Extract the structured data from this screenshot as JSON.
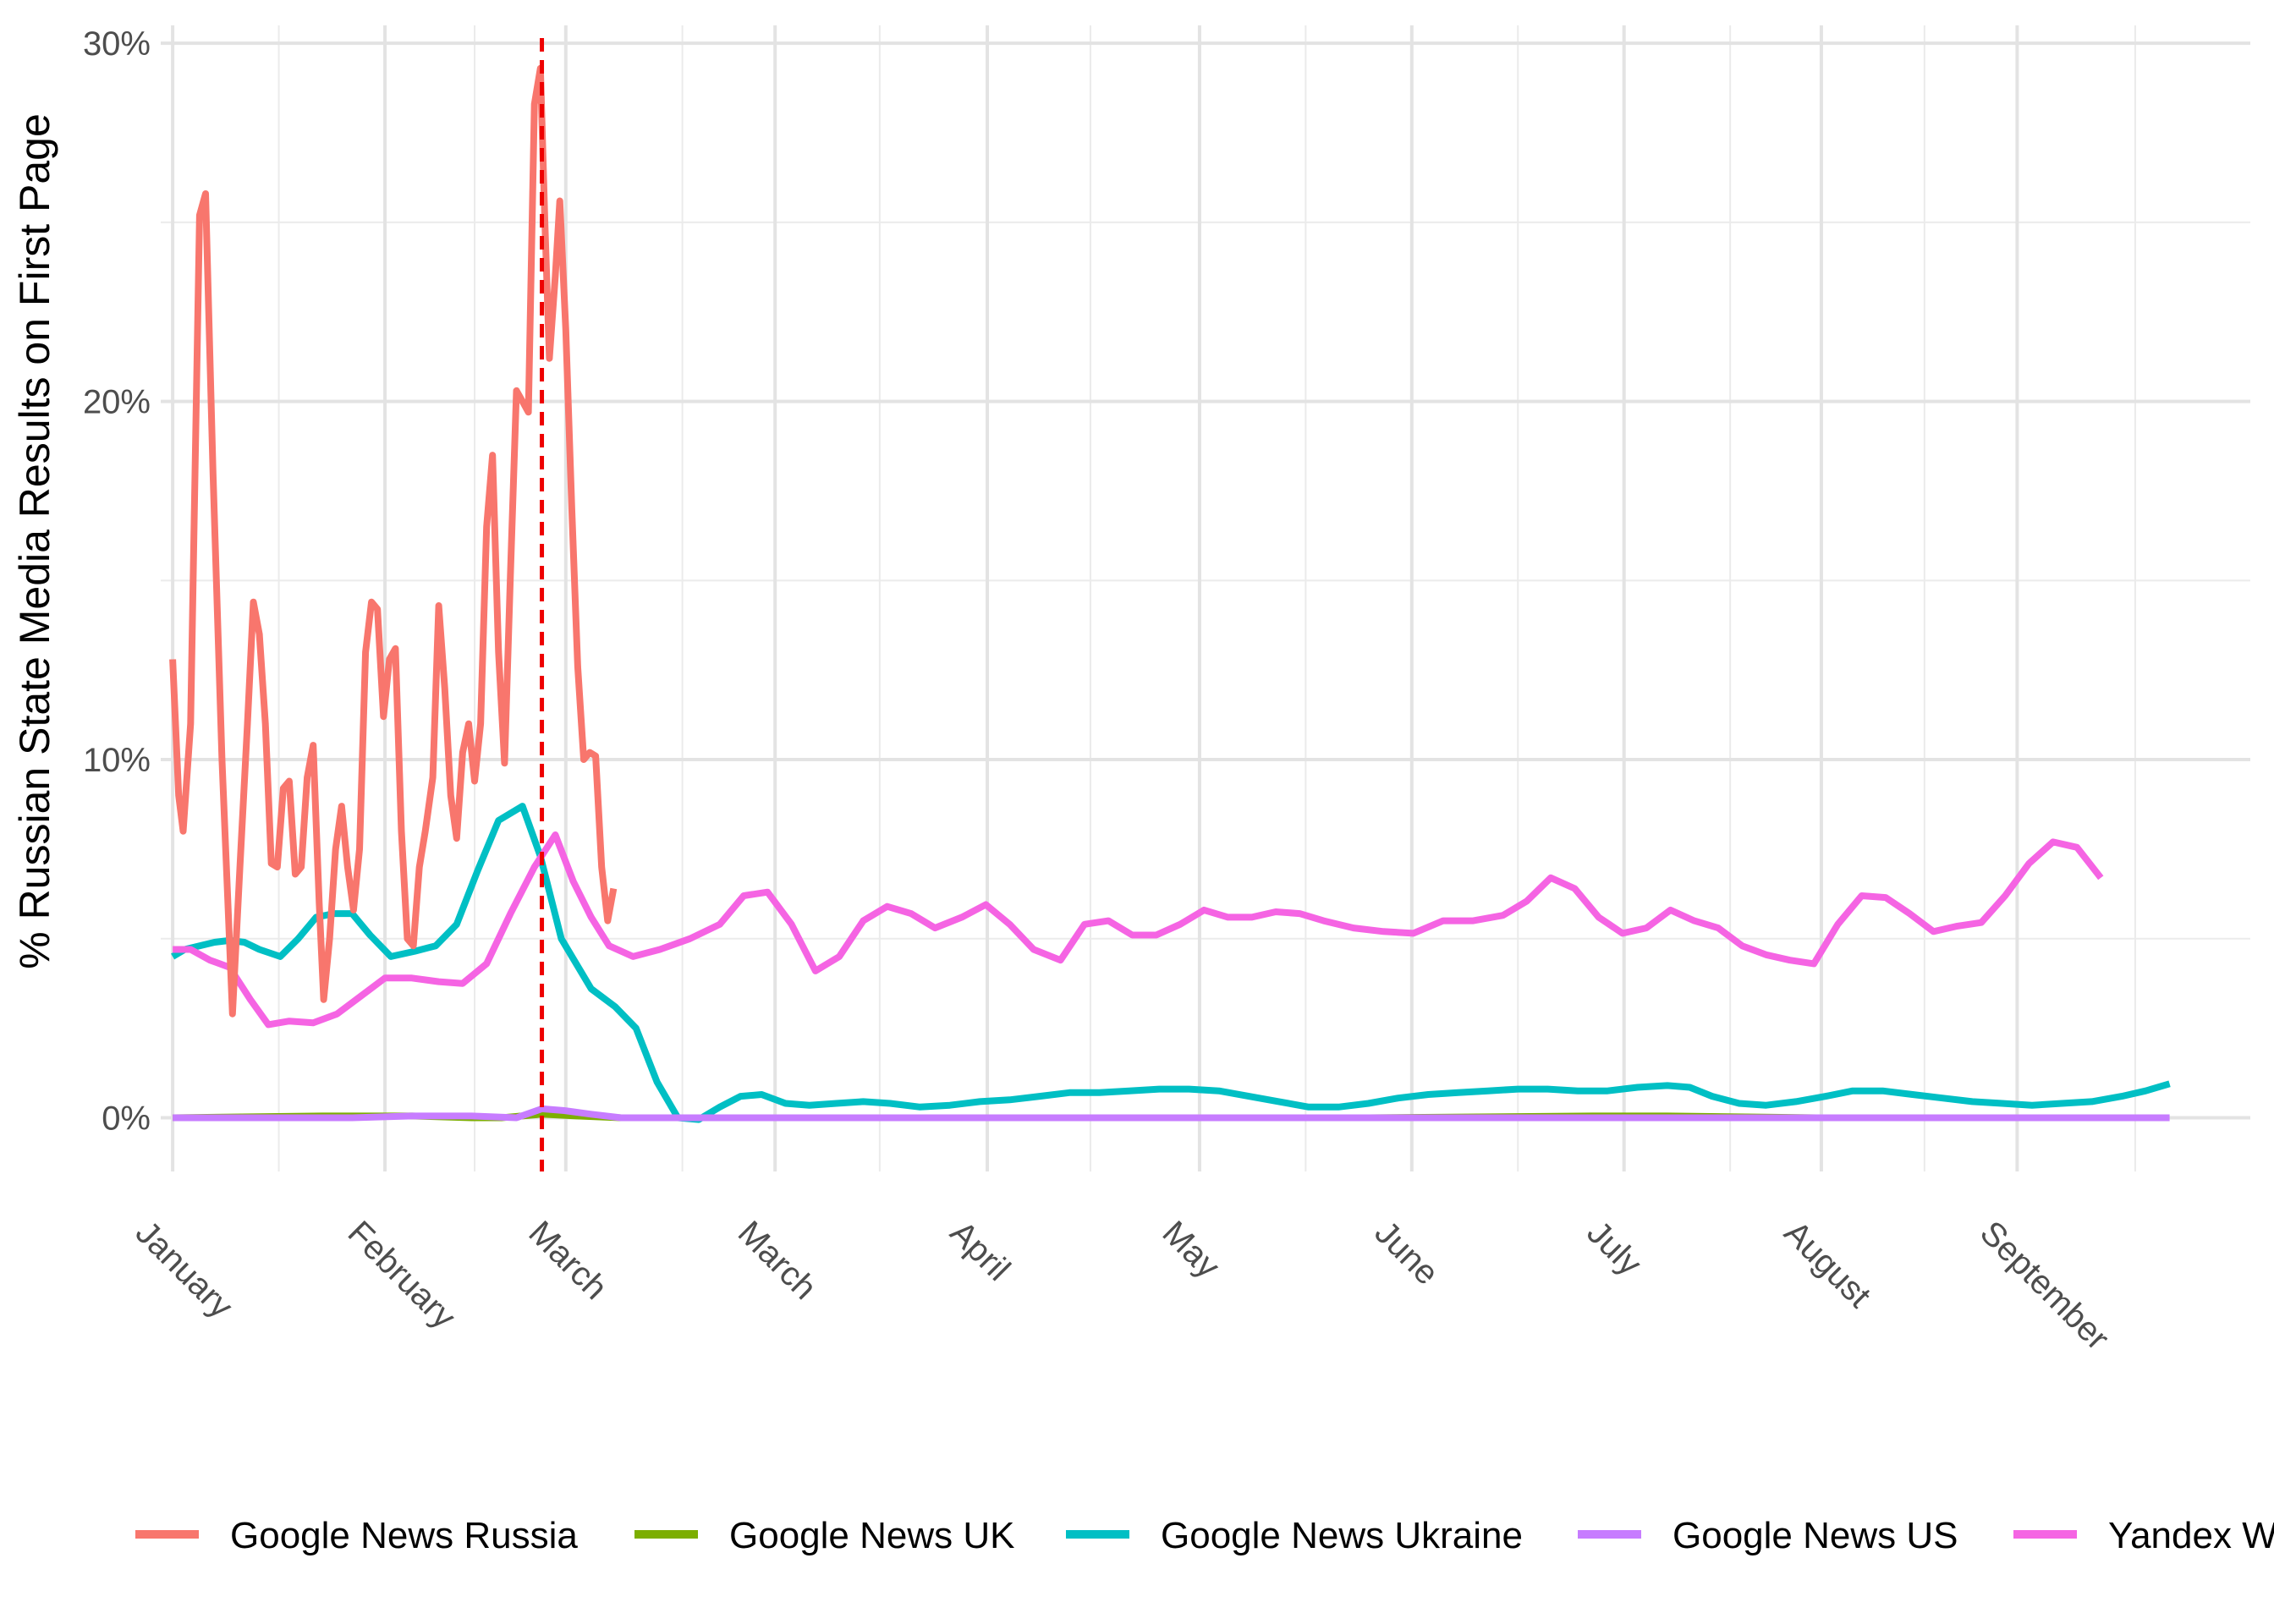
{
  "chart_data": {
    "type": "line",
    "title": "",
    "xlabel": "",
    "ylabel": "% Russian State Media Results on First Page",
    "ylim": [
      -1.5,
      30.5
    ],
    "yticks": [
      0,
      10,
      20,
      30
    ],
    "ytick_labels": [
      "0%",
      "10%",
      "20%",
      "30%"
    ],
    "xlim": [
      -8,
      1390
    ],
    "xticks": [
      {
        "label": "January",
        "day": 0
      },
      {
        "label": "February",
        "day": 142
      },
      {
        "label": "March",
        "day": 263
      },
      {
        "label": "March",
        "day": 403
      },
      {
        "label": "April",
        "day": 545
      },
      {
        "label": "May",
        "day": 687
      },
      {
        "label": "June",
        "day": 829
      },
      {
        "label": "July",
        "day": 971
      },
      {
        "label": "August",
        "day": 1103
      },
      {
        "label": "September",
        "day": 1234
      }
    ],
    "xminor": [
      71,
      202,
      341,
      473,
      614,
      758,
      900,
      1042,
      1172,
      1313
    ],
    "vline": {
      "day": 247,
      "color": "#e41a1c",
      "style": "dashed"
    },
    "legend_position": "bottom",
    "grid": true,
    "series": [
      {
        "name": "Google News Russia",
        "color": "#F8766D",
        "points": [
          [
            0,
            12.8
          ],
          [
            4,
            9.0
          ],
          [
            7,
            8.0
          ],
          [
            12,
            11.0
          ],
          [
            18,
            25.2
          ],
          [
            22,
            25.8
          ],
          [
            27,
            18.0
          ],
          [
            33,
            10.0
          ],
          [
            40,
            2.9
          ],
          [
            45,
            7.0
          ],
          [
            50,
            11.0
          ],
          [
            54,
            14.4
          ],
          [
            58,
            13.5
          ],
          [
            62,
            11.0
          ],
          [
            66,
            7.1
          ],
          [
            70,
            7.0
          ],
          [
            74,
            9.2
          ],
          [
            78,
            9.4
          ],
          [
            82,
            6.8
          ],
          [
            86,
            7.0
          ],
          [
            90,
            9.5
          ],
          [
            94,
            10.4
          ],
          [
            98,
            6.0
          ],
          [
            101,
            3.3
          ],
          [
            105,
            5.0
          ],
          [
            109,
            7.5
          ],
          [
            113,
            8.7
          ],
          [
            117,
            7.0
          ],
          [
            121,
            5.8
          ],
          [
            125,
            7.5
          ],
          [
            129,
            13.0
          ],
          [
            133,
            14.4
          ],
          [
            137,
            14.2
          ],
          [
            141,
            11.2
          ],
          [
            145,
            12.8
          ],
          [
            149,
            13.1
          ],
          [
            153,
            8.0
          ],
          [
            157,
            5.0
          ],
          [
            161,
            4.8
          ],
          [
            165,
            7.0
          ],
          [
            169,
            8.0
          ],
          [
            174,
            9.5
          ],
          [
            178,
            14.3
          ],
          [
            182,
            12.0
          ],
          [
            186,
            9.0
          ],
          [
            190,
            7.8
          ],
          [
            194,
            10.2
          ],
          [
            198,
            11.0
          ],
          [
            202,
            9.4
          ],
          [
            206,
            11.0
          ],
          [
            210,
            16.5
          ],
          [
            214,
            18.5
          ],
          [
            218,
            13.0
          ],
          [
            222,
            9.9
          ],
          [
            226,
            15.2
          ],
          [
            230,
            20.3
          ],
          [
            234,
            20.0
          ],
          [
            238,
            19.7
          ],
          [
            242,
            28.3
          ],
          [
            246,
            29.3
          ],
          [
            249,
            25.0
          ],
          [
            252,
            21.2
          ],
          [
            256,
            23.5
          ],
          [
            259,
            25.6
          ],
          [
            263,
            22.0
          ],
          [
            267,
            17.0
          ],
          [
            271,
            12.6
          ],
          [
            275,
            10.0
          ],
          [
            279,
            10.2
          ],
          [
            283,
            10.1
          ],
          [
            287,
            7.0
          ],
          [
            291,
            5.5
          ],
          [
            295,
            6.4
          ]
        ]
      },
      {
        "name": "Google News UK",
        "color": "#7CAE00",
        "points": [
          [
            0,
            0
          ],
          [
            100,
            0.05
          ],
          [
            160,
            0.05
          ],
          [
            200,
            0
          ],
          [
            220,
            0
          ],
          [
            247,
            0.1
          ],
          [
            270,
            0.05
          ],
          [
            300,
            0
          ],
          [
            500,
            0
          ],
          [
            800,
            0
          ],
          [
            950,
            0.05
          ],
          [
            1000,
            0.05
          ],
          [
            1100,
            0
          ],
          [
            1160,
            0
          ]
        ]
      },
      {
        "name": "Google News Ukraine",
        "color": "#00BFC4",
        "points": [
          [
            0,
            4.5
          ],
          [
            8,
            4.7
          ],
          [
            18,
            4.8
          ],
          [
            28,
            4.9
          ],
          [
            38,
            4.95
          ],
          [
            48,
            4.9
          ],
          [
            58,
            4.7
          ],
          [
            72,
            4.5
          ],
          [
            84,
            5.0
          ],
          [
            96,
            5.6
          ],
          [
            108,
            5.7
          ],
          [
            120,
            5.7
          ],
          [
            132,
            5.1
          ],
          [
            146,
            4.5
          ],
          [
            162,
            4.65
          ],
          [
            176,
            4.8
          ],
          [
            190,
            5.4
          ],
          [
            204,
            6.9
          ],
          [
            218,
            8.3
          ],
          [
            234,
            8.7
          ],
          [
            246,
            7.3
          ],
          [
            260,
            5.0
          ],
          [
            280,
            3.6
          ],
          [
            296,
            3.1
          ],
          [
            310,
            2.5
          ],
          [
            324,
            1.0
          ],
          [
            338,
            0
          ],
          [
            352,
            -0.05
          ],
          [
            366,
            0.3
          ],
          [
            380,
            0.6
          ],
          [
            394,
            0.65
          ],
          [
            410,
            0.4
          ],
          [
            426,
            0.35
          ],
          [
            444,
            0.4
          ],
          [
            462,
            0.45
          ],
          [
            480,
            0.4
          ],
          [
            500,
            0.3
          ],
          [
            520,
            0.35
          ],
          [
            540,
            0.45
          ],
          [
            560,
            0.5
          ],
          [
            580,
            0.6
          ],
          [
            600,
            0.7
          ],
          [
            620,
            0.7
          ],
          [
            640,
            0.75
          ],
          [
            660,
            0.8
          ],
          [
            680,
            0.8
          ],
          [
            700,
            0.75
          ],
          [
            720,
            0.6
          ],
          [
            740,
            0.45
          ],
          [
            760,
            0.3
          ],
          [
            780,
            0.3
          ],
          [
            800,
            0.4
          ],
          [
            820,
            0.55
          ],
          [
            840,
            0.65
          ],
          [
            860,
            0.7
          ],
          [
            880,
            0.75
          ],
          [
            900,
            0.8
          ],
          [
            920,
            0.8
          ],
          [
            940,
            0.75
          ],
          [
            960,
            0.75
          ],
          [
            980,
            0.85
          ],
          [
            1000,
            0.9
          ],
          [
            1015,
            0.85
          ],
          [
            1030,
            0.6
          ],
          [
            1048,
            0.4
          ],
          [
            1066,
            0.35
          ],
          [
            1086,
            0.45
          ],
          [
            1106,
            0.6
          ],
          [
            1124,
            0.75
          ],
          [
            1144,
            0.75
          ],
          [
            1164,
            0.65
          ],
          [
            1184,
            0.55
          ],
          [
            1204,
            0.45
          ],
          [
            1224,
            0.4
          ],
          [
            1244,
            0.35
          ],
          [
            1264,
            0.4
          ],
          [
            1284,
            0.45
          ],
          [
            1304,
            0.6
          ],
          [
            1320,
            0.75
          ],
          [
            1336,
            0.95
          ]
        ]
      },
      {
        "name": "Google News US",
        "color": "#C77CFF",
        "points": [
          [
            0,
            0
          ],
          [
            80,
            0
          ],
          [
            120,
            0
          ],
          [
            160,
            0.05
          ],
          [
            200,
            0.05
          ],
          [
            230,
            0
          ],
          [
            247,
            0.25
          ],
          [
            262,
            0.2
          ],
          [
            280,
            0.1
          ],
          [
            300,
            0
          ],
          [
            340,
            0
          ],
          [
            500,
            0
          ],
          [
            800,
            0
          ],
          [
            1100,
            0
          ],
          [
            1336,
            0
          ]
        ]
      },
      {
        "name": "Yandex World",
        "color": "#F564E3",
        "points": [
          [
            0,
            4.7
          ],
          [
            12,
            4.7
          ],
          [
            25,
            4.4
          ],
          [
            38,
            4.2
          ],
          [
            52,
            3.3
          ],
          [
            64,
            2.6
          ],
          [
            78,
            2.7
          ],
          [
            94,
            2.65
          ],
          [
            110,
            2.9
          ],
          [
            126,
            3.4
          ],
          [
            142,
            3.9
          ],
          [
            160,
            3.9
          ],
          [
            178,
            3.8
          ],
          [
            194,
            3.75
          ],
          [
            210,
            4.3
          ],
          [
            226,
            5.7
          ],
          [
            242,
            7.0
          ],
          [
            256,
            7.9
          ],
          [
            268,
            6.6
          ],
          [
            280,
            5.6
          ],
          [
            292,
            4.8
          ],
          [
            308,
            4.5
          ],
          [
            326,
            4.7
          ],
          [
            346,
            5.0
          ],
          [
            366,
            5.4
          ],
          [
            382,
            6.2
          ],
          [
            398,
            6.3
          ],
          [
            414,
            5.4
          ],
          [
            430,
            4.1
          ],
          [
            446,
            4.5
          ],
          [
            462,
            5.5
          ],
          [
            478,
            5.9
          ],
          [
            494,
            5.7
          ],
          [
            510,
            5.3
          ],
          [
            528,
            5.6
          ],
          [
            544,
            5.95
          ],
          [
            560,
            5.4
          ],
          [
            576,
            4.7
          ],
          [
            594,
            4.4
          ],
          [
            610,
            5.4
          ],
          [
            626,
            5.5
          ],
          [
            642,
            5.1
          ],
          [
            658,
            5.1
          ],
          [
            674,
            5.4
          ],
          [
            690,
            5.8
          ],
          [
            706,
            5.6
          ],
          [
            722,
            5.6
          ],
          [
            738,
            5.75
          ],
          [
            754,
            5.7
          ],
          [
            770,
            5.5
          ],
          [
            790,
            5.3
          ],
          [
            810,
            5.2
          ],
          [
            830,
            5.15
          ],
          [
            850,
            5.5
          ],
          [
            870,
            5.5
          ],
          [
            890,
            5.65
          ],
          [
            906,
            6.05
          ],
          [
            922,
            6.7
          ],
          [
            938,
            6.4
          ],
          [
            954,
            5.6
          ],
          [
            970,
            5.15
          ],
          [
            986,
            5.3
          ],
          [
            1002,
            5.8
          ],
          [
            1018,
            5.5
          ],
          [
            1034,
            5.3
          ],
          [
            1050,
            4.8
          ],
          [
            1066,
            4.55
          ],
          [
            1082,
            4.4
          ],
          [
            1098,
            4.3
          ],
          [
            1114,
            5.4
          ],
          [
            1130,
            6.2
          ],
          [
            1146,
            6.15
          ],
          [
            1162,
            5.7
          ],
          [
            1178,
            5.2
          ],
          [
            1194,
            5.35
          ],
          [
            1210,
            5.45
          ],
          [
            1226,
            6.2
          ],
          [
            1242,
            7.1
          ],
          [
            1258,
            7.7
          ],
          [
            1274,
            7.55
          ],
          [
            1290,
            6.7
          ]
        ]
      }
    ]
  }
}
